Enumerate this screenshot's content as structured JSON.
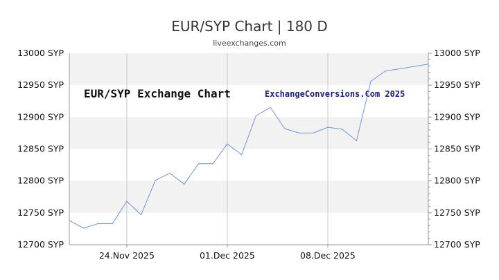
{
  "title": "EUR/SYP Chart | 180 D",
  "subtitle": "liveexchanges.com",
  "watermark_left": "EUR/SYP Exchange Chart",
  "watermark_right": "ExchangeConversions.Com 2025",
  "colors": {
    "line": "#6f94dc",
    "band": "#f2f2f2",
    "grid": "#c8c8c8",
    "axis": "#999999"
  },
  "chart_data": {
    "type": "line",
    "title": "EUR/SYP Chart | 180 D",
    "xlabel": "",
    "ylabel": "",
    "ylim": [
      12700,
      13000
    ],
    "y_ticks": [
      13000,
      12950,
      12900,
      12850,
      12800,
      12750,
      12700
    ],
    "y_tick_labels": [
      "13000 SYP",
      "12950 SYP",
      "12900 SYP",
      "12850 SYP",
      "12800 SYP",
      "12750 SYP",
      "12700 SYP"
    ],
    "x_tick_labels": [
      "24.Nov 2025",
      "01.Dec 2025",
      "08.Dec 2025"
    ],
    "x_tick_dates": [
      "2025-11-24",
      "2025-12-01",
      "2025-12-08"
    ],
    "x_range": [
      "2025-11-20",
      "2025-12-15"
    ],
    "grid": true,
    "series": [
      {
        "x": [
          "2025-11-20",
          "2025-11-21",
          "2025-11-22",
          "2025-11-23",
          "2025-11-24",
          "2025-11-25",
          "2025-11-26",
          "2025-11-27",
          "2025-11-28",
          "2025-11-29",
          "2025-11-30",
          "2025-12-01",
          "2025-12-02",
          "2025-12-03",
          "2025-12-04",
          "2025-12-05",
          "2025-12-06",
          "2025-12-07",
          "2025-12-08",
          "2025-12-09",
          "2025-12-10",
          "2025-12-11",
          "2025-12-12",
          "2025-12-15"
        ],
        "values": [
          12738,
          12726,
          12733,
          12733,
          12768,
          12747,
          12801,
          12812,
          12795,
          12827,
          12827,
          12858,
          12841,
          12902,
          12915,
          12882,
          12875,
          12875,
          12884,
          12881,
          12863,
          12956,
          12972,
          12983
        ]
      }
    ]
  }
}
